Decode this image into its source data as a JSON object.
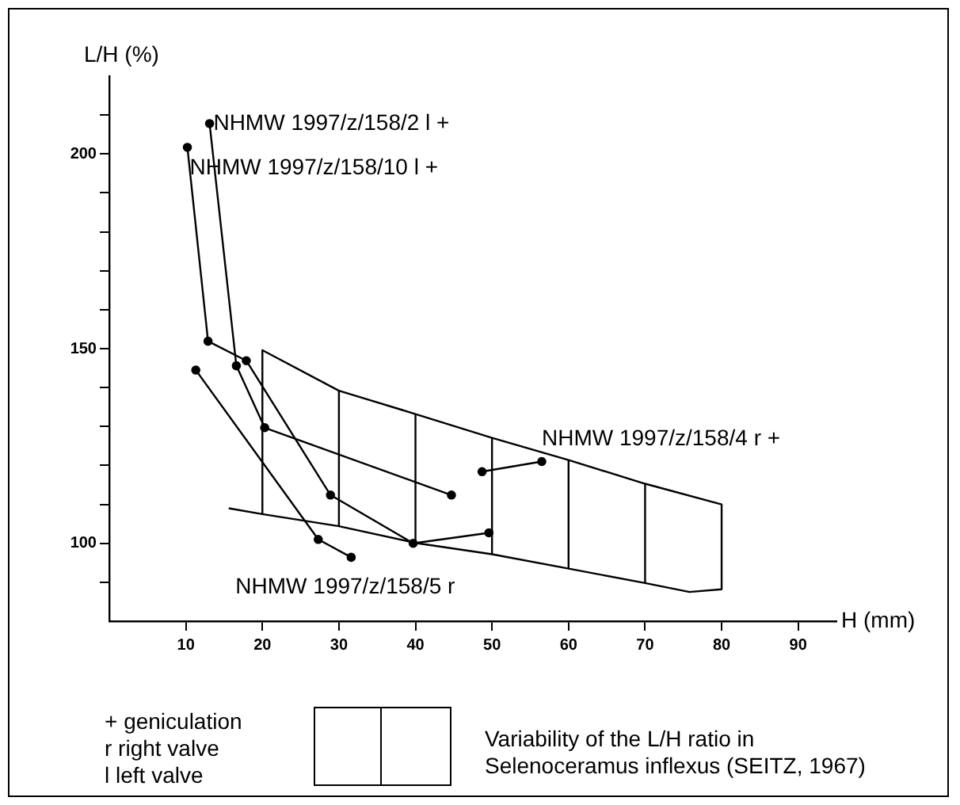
{
  "chart_data": {
    "type": "line",
    "xlabel": "H (mm)",
    "ylabel": "L/H (%)",
    "xlim": [
      0,
      95
    ],
    "xticks": [
      10,
      20,
      30,
      40,
      50,
      60,
      70,
      80,
      90
    ],
    "ylim": [
      80,
      220
    ],
    "yticks": [
      {
        "value": 90,
        "label": null
      },
      100,
      {
        "value": 110,
        "label": null
      },
      {
        "value": 120,
        "label": null
      },
      {
        "value": 130,
        "label": null
      },
      {
        "value": 140,
        "label": null
      },
      150,
      {
        "value": 160,
        "label": null
      },
      {
        "value": 170,
        "label": null
      },
      {
        "value": 180,
        "label": null
      },
      {
        "value": 190,
        "label": null
      },
      200,
      {
        "value": 210,
        "label": null
      }
    ],
    "grid": false,
    "legend": false,
    "marker": "circle",
    "line_style": "solid",
    "series": [
      {
        "color": "#000000",
        "x": [
          13.1,
          16.6,
          20.3,
          44.7
        ],
        "values": [
          207.8,
          145.6,
          129.7,
          112.4
        ]
      },
      {
        "color": "#000000",
        "x": [
          10.2,
          12.9,
          17.9,
          28.9,
          39.7,
          49.6
        ],
        "values": [
          201.7,
          151.9,
          146.9,
          112.4,
          100,
          102.7
        ]
      },
      {
        "color": "#000000",
        "x": [
          11.3,
          27.3,
          31.6
        ],
        "values": [
          144.5,
          101,
          96.4
        ]
      },
      {
        "color": "#000000",
        "x": [
          48.7,
          56.5
        ],
        "values": [
          118.4,
          121
        ]
      },
      {
        "color": "#000000",
        "marker": "none",
        "x": [
          15.6,
          20,
          30,
          40,
          50,
          60,
          70,
          75.8,
          80,
          80,
          70,
          60,
          50,
          40,
          30,
          20,
          20
        ],
        "values": [
          109,
          107.5,
          104.4,
          100.1,
          97.2,
          93.5,
          89.8,
          87.5,
          88.2,
          110,
          115.3,
          121.4,
          127.1,
          133.2,
          139.2,
          149.6,
          107.5
        ]
      },
      {
        "color": "#000000",
        "marker": "none",
        "x": [
          30,
          30
        ],
        "values": [
          104.4,
          139.2
        ]
      },
      {
        "color": "#000000",
        "marker": "none",
        "x": [
          40,
          40
        ],
        "values": [
          100.1,
          133.2
        ]
      },
      {
        "color": "#000000",
        "marker": "none",
        "x": [
          50,
          50
        ],
        "values": [
          97.2,
          127.1
        ]
      },
      {
        "color": "#000000",
        "marker": "none",
        "x": [
          60,
          60
        ],
        "values": [
          93.5,
          121.4
        ]
      },
      {
        "color": "#000000",
        "marker": "none",
        "x": [
          70,
          70
        ],
        "values": [
          89.8,
          115.3
        ]
      }
    ],
    "annotations": [
      {
        "text": "NHMW 1997/z/158/2 l +",
        "x": 13.6,
        "y": 207.8
      },
      {
        "text": "NHMW 1997/z/158/10 l +",
        "x": 10.5,
        "y": 196.4
      },
      "NHMW 1997/z/158/4 r +",
      "NHMW 1997/z/158/5 r",
      "+  geniculation",
      "r  right valve",
      "l  left valve",
      "Variability of the L/H ratio in",
      "Selenoceramus inflexus (SEITZ, 1967)"
    ]
  }
}
